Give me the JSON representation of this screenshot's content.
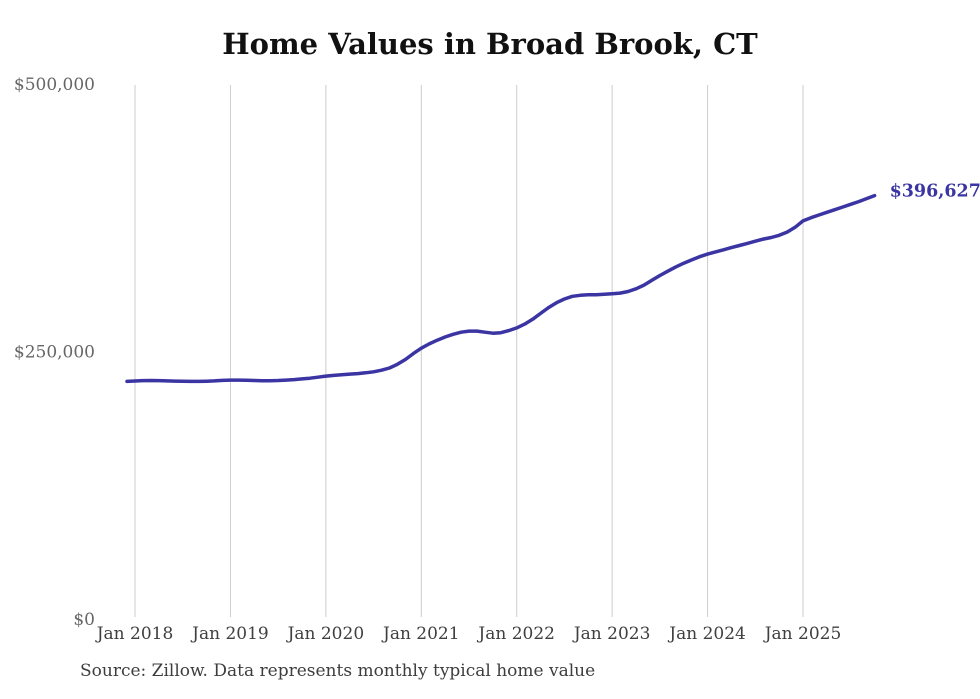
{
  "chart_data": {
    "type": "line",
    "title": "Home Values in Broad Brook, CT",
    "source_note": "Source: Zillow. Data represents monthly typical home value",
    "end_value_label": "$396,627",
    "x_tick_labels": [
      "Jan 2018",
      "Jan 2019",
      "Jan 2020",
      "Jan 2021",
      "Jan 2022",
      "Jan 2023",
      "Jan 2024",
      "Jan 2025"
    ],
    "y_ticks": [
      {
        "value": 0,
        "label": "$0"
      },
      {
        "value": 250000,
        "label": "$250,000"
      },
      {
        "value": 500000,
        "label": "$500,000"
      }
    ],
    "ylim": [
      0,
      500000
    ],
    "grid": "vertical-only",
    "legend_position": "none",
    "line_color": "#3B35A3",
    "grid_color": "#CCCCCC",
    "title_color": "#111111",
    "y_label_color": "#666666",
    "x_label_color": "#3F3F3F",
    "source_color": "#3D3D3D",
    "series": [
      {
        "name": "Monthly typical home value",
        "unit": "USD",
        "points": [
          [
            "2017-12",
            223000
          ],
          [
            "2018-01",
            223400
          ],
          [
            "2018-02",
            223700
          ],
          [
            "2018-03",
            223800
          ],
          [
            "2018-04",
            223700
          ],
          [
            "2018-05",
            223500
          ],
          [
            "2018-06",
            223300
          ],
          [
            "2018-07",
            223100
          ],
          [
            "2018-08",
            223000
          ],
          [
            "2018-09",
            223000
          ],
          [
            "2018-10",
            223200
          ],
          [
            "2018-11",
            223500
          ],
          [
            "2018-12",
            223900
          ],
          [
            "2019-01",
            224200
          ],
          [
            "2019-02",
            224200
          ],
          [
            "2019-03",
            224000
          ],
          [
            "2019-04",
            223800
          ],
          [
            "2019-05",
            223600
          ],
          [
            "2019-06",
            223600
          ],
          [
            "2019-07",
            223800
          ],
          [
            "2019-08",
            224200
          ],
          [
            "2019-09",
            224700
          ],
          [
            "2019-10",
            225300
          ],
          [
            "2019-11",
            226000
          ],
          [
            "2019-12",
            226900
          ],
          [
            "2020-01",
            227900
          ],
          [
            "2020-02",
            228600
          ],
          [
            "2020-03",
            229200
          ],
          [
            "2020-04",
            229800
          ],
          [
            "2020-05",
            230300
          ],
          [
            "2020-06",
            231000
          ],
          [
            "2020-07",
            232000
          ],
          [
            "2020-08",
            233500
          ],
          [
            "2020-09",
            235500
          ],
          [
            "2020-10",
            239000
          ],
          [
            "2020-11",
            243500
          ],
          [
            "2020-12",
            249000
          ],
          [
            "2021-01",
            254000
          ],
          [
            "2021-02",
            258000
          ],
          [
            "2021-03",
            261500
          ],
          [
            "2021-04",
            264500
          ],
          [
            "2021-05",
            267000
          ],
          [
            "2021-06",
            269000
          ],
          [
            "2021-07",
            270000
          ],
          [
            "2021-08",
            270000
          ],
          [
            "2021-09",
            269000
          ],
          [
            "2021-10",
            268000
          ],
          [
            "2021-11",
            268500
          ],
          [
            "2021-12",
            270500
          ],
          [
            "2022-01",
            273000
          ],
          [
            "2022-02",
            276500
          ],
          [
            "2022-03",
            281000
          ],
          [
            "2022-04",
            286500
          ],
          [
            "2022-05",
            292000
          ],
          [
            "2022-06",
            296500
          ],
          [
            "2022-07",
            300000
          ],
          [
            "2022-08",
            302500
          ],
          [
            "2022-09",
            303500
          ],
          [
            "2022-10",
            304000
          ],
          [
            "2022-11",
            304000
          ],
          [
            "2022-12",
            304500
          ],
          [
            "2023-01",
            305000
          ],
          [
            "2023-02",
            305500
          ],
          [
            "2023-03",
            307000
          ],
          [
            "2023-04",
            309500
          ],
          [
            "2023-05",
            313000
          ],
          [
            "2023-06",
            317500
          ],
          [
            "2023-07",
            322000
          ],
          [
            "2023-08",
            326000
          ],
          [
            "2023-09",
            330000
          ],
          [
            "2023-10",
            333500
          ],
          [
            "2023-11",
            336500
          ],
          [
            "2023-12",
            339500
          ],
          [
            "2024-01",
            342000
          ],
          [
            "2024-02",
            344000
          ],
          [
            "2024-03",
            346000
          ],
          [
            "2024-04",
            348000
          ],
          [
            "2024-05",
            350000
          ],
          [
            "2024-06",
            352000
          ],
          [
            "2024-07",
            354000
          ],
          [
            "2024-08",
            356000
          ],
          [
            "2024-09",
            357500
          ],
          [
            "2024-10",
            359500
          ],
          [
            "2024-11",
            362500
          ],
          [
            "2024-12",
            367000
          ],
          [
            "2025-01",
            373000
          ],
          [
            "2025-02",
            376000
          ],
          [
            "2025-03",
            378500
          ],
          [
            "2025-04",
            381000
          ],
          [
            "2025-05",
            383500
          ],
          [
            "2025-06",
            386000
          ],
          [
            "2025-07",
            388500
          ],
          [
            "2025-08",
            391000
          ],
          [
            "2025-09",
            393800
          ],
          [
            "2025-10",
            396627
          ]
        ]
      }
    ]
  }
}
